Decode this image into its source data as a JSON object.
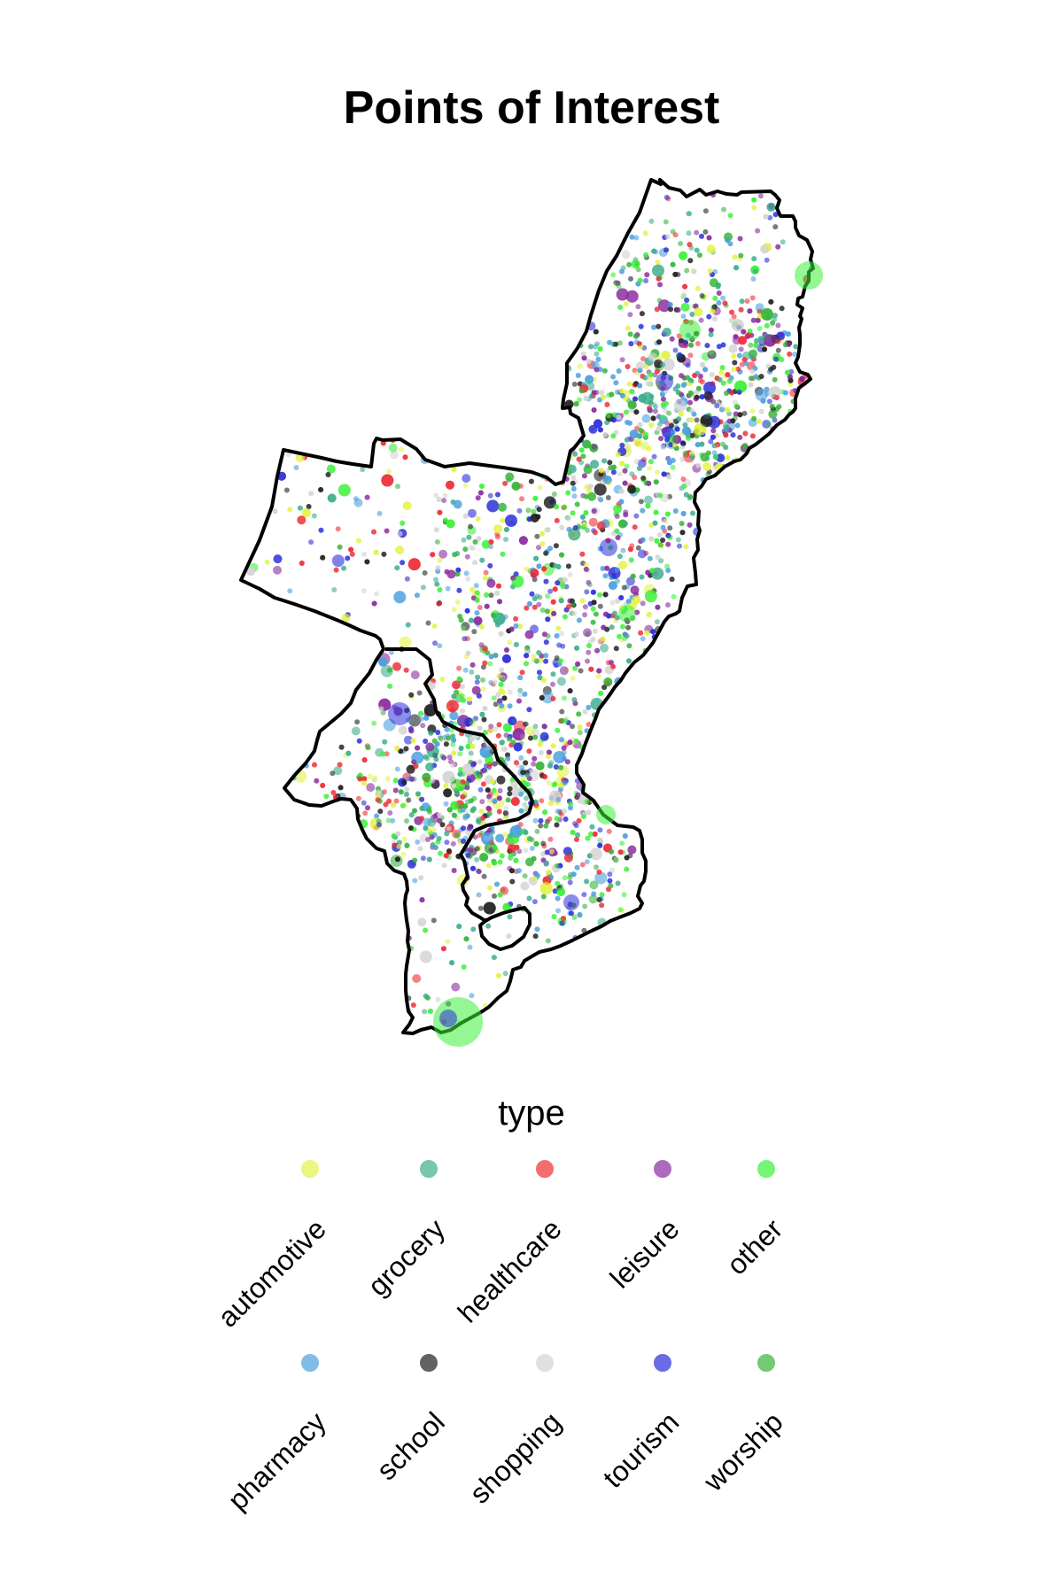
{
  "chart_data": {
    "type": "scatter",
    "title": "Points of Interest",
    "legend": {
      "title": "type",
      "placement": "bottom",
      "entries": [
        {
          "name": "automotive",
          "color": "#e5f14a"
        },
        {
          "name": "grocery",
          "color": "#3fae8f"
        },
        {
          "name": "healthcare",
          "color": "#ef2f37"
        },
        {
          "name": "leisure",
          "color": "#8a2d9e"
        },
        {
          "name": "other",
          "color": "#3df03b"
        },
        {
          "name": "pharmacy",
          "color": "#4da0df"
        },
        {
          "name": "school",
          "color": "#222222"
        },
        {
          "name": "shopping",
          "color": "#d4d4d4"
        },
        {
          "name": "tourism",
          "color": "#2b2fd8"
        },
        {
          "name": "worship",
          "color": "#38b43b"
        }
      ]
    },
    "grid": false,
    "axes_visible": false
  }
}
